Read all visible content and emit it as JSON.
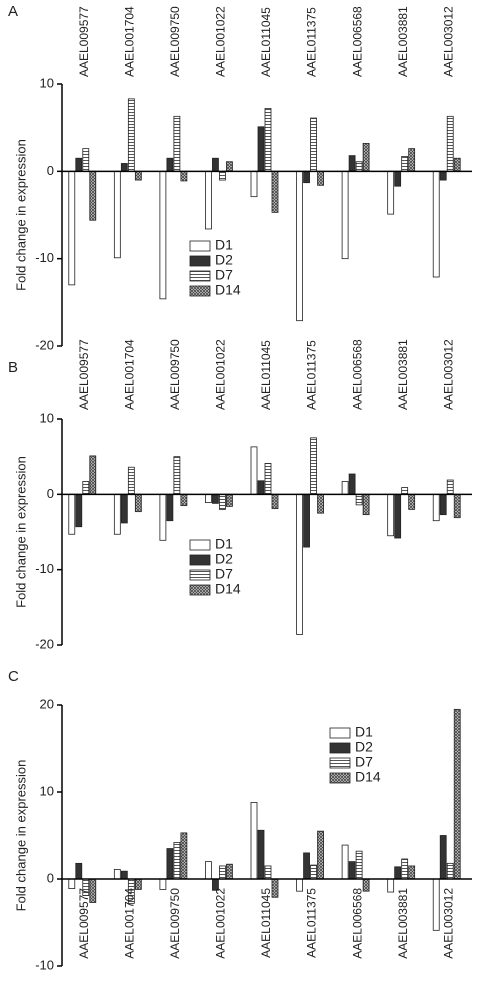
{
  "chart_data": [
    {
      "type": "bar",
      "panel_label": "A",
      "y_label": "Fold change in expression",
      "categories": [
        "AAEL009577",
        "AAEL001704",
        "AAEL009750",
        "AAEL001022",
        "AAEL011045",
        "AAEL011375",
        "AAEL006568",
        "AAEL003881",
        "AAEL003012"
      ],
      "category_label_position": "top",
      "legend_position": "lower center",
      "ylim": [
        -20,
        10
      ],
      "yticks": [
        -20,
        -10,
        0,
        10
      ],
      "series": [
        {
          "name": "D1",
          "color": "#ffffff",
          "pattern": "none",
          "values": [
            -13,
            -9.9,
            -14.6,
            -6.6,
            -2.9,
            -17.1,
            -10,
            -4.9,
            -12.1
          ]
        },
        {
          "name": "D2",
          "color": "#333333",
          "pattern": "none",
          "values": [
            1.5,
            0.9,
            1.5,
            1.5,
            5.1,
            -1.3,
            1.8,
            -1.7,
            -1.0
          ]
        },
        {
          "name": "D7",
          "color": "#ffffff",
          "pattern": "horizontal",
          "values": [
            2.6,
            8.3,
            6.3,
            -1.0,
            7.2,
            6.1,
            1.1,
            1.7,
            6.3
          ]
        },
        {
          "name": "D14",
          "color": "#ffffff",
          "pattern": "crosshatch",
          "values": [
            -5.6,
            -1.0,
            -1.1,
            1.1,
            -4.7,
            -1.6,
            3.2,
            2.6,
            1.5
          ]
        }
      ]
    },
    {
      "type": "bar",
      "panel_label": "B",
      "y_label": "Fold change in expression",
      "categories": [
        "AAEL009577",
        "AAEL001704",
        "AAEL009750",
        "AAEL001022",
        "AAEL011045",
        "AAEL011375",
        "AAEL006568",
        "AAEL003881",
        "AAEL003012"
      ],
      "category_label_position": "top",
      "legend_position": "lower center",
      "ylim": [
        -20,
        10
      ],
      "yticks": [
        -20,
        -10,
        0,
        10
      ],
      "series": [
        {
          "name": "D1",
          "color": "#ffffff",
          "pattern": "none",
          "values": [
            -5.3,
            -5.3,
            -6.1,
            -1.1,
            6.3,
            -18.6,
            1.7,
            -5.5,
            -3.5
          ]
        },
        {
          "name": "D2",
          "color": "#333333",
          "pattern": "none",
          "values": [
            -4.3,
            -3.8,
            -3.5,
            -1.2,
            1.8,
            -7.0,
            2.7,
            -5.8,
            -2.7
          ]
        },
        {
          "name": "D7",
          "color": "#ffffff",
          "pattern": "horizontal",
          "values": [
            1.7,
            3.6,
            5.0,
            -2.0,
            4.1,
            7.5,
            -1.4,
            0.9,
            1.9
          ]
        },
        {
          "name": "D14",
          "color": "#ffffff",
          "pattern": "crosshatch",
          "values": [
            5.1,
            -2.3,
            -1.5,
            -1.6,
            -1.9,
            -2.5,
            -2.7,
            -2.0,
            -3.1
          ]
        }
      ]
    },
    {
      "type": "bar",
      "panel_label": "C",
      "y_label": "Fold change in expression",
      "categories": [
        "AAEL009577",
        "AAEL001704",
        "AAEL009750",
        "AAEL001022",
        "AAEL011045",
        "AAEL011375",
        "AAEL006568",
        "AAEL003881",
        "AAEL003012"
      ],
      "category_label_position": "bottom",
      "legend_position": "upper right",
      "ylim": [
        -10,
        20
      ],
      "yticks": [
        -10,
        0,
        10,
        20
      ],
      "series": [
        {
          "name": "D1",
          "color": "#ffffff",
          "pattern": "none",
          "values": [
            -1.1,
            1.1,
            -1.2,
            2.0,
            8.8,
            -1.4,
            3.9,
            -1.5,
            -5.9
          ]
        },
        {
          "name": "D2",
          "color": "#333333",
          "pattern": "none",
          "values": [
            1.8,
            0.9,
            3.5,
            -1.3,
            5.6,
            3.0,
            2.0,
            1.4,
            5.0
          ]
        },
        {
          "name": "D7",
          "color": "#ffffff",
          "pattern": "horizontal",
          "values": [
            -1.9,
            -2.8,
            4.2,
            1.5,
            1.5,
            1.6,
            3.2,
            2.3,
            1.8
          ]
        },
        {
          "name": "D14",
          "color": "#ffffff",
          "pattern": "crosshatch",
          "values": [
            -2.7,
            -1.2,
            5.3,
            1.7,
            -2.1,
            5.5,
            -1.4,
            1.5,
            19.5
          ]
        }
      ]
    }
  ]
}
